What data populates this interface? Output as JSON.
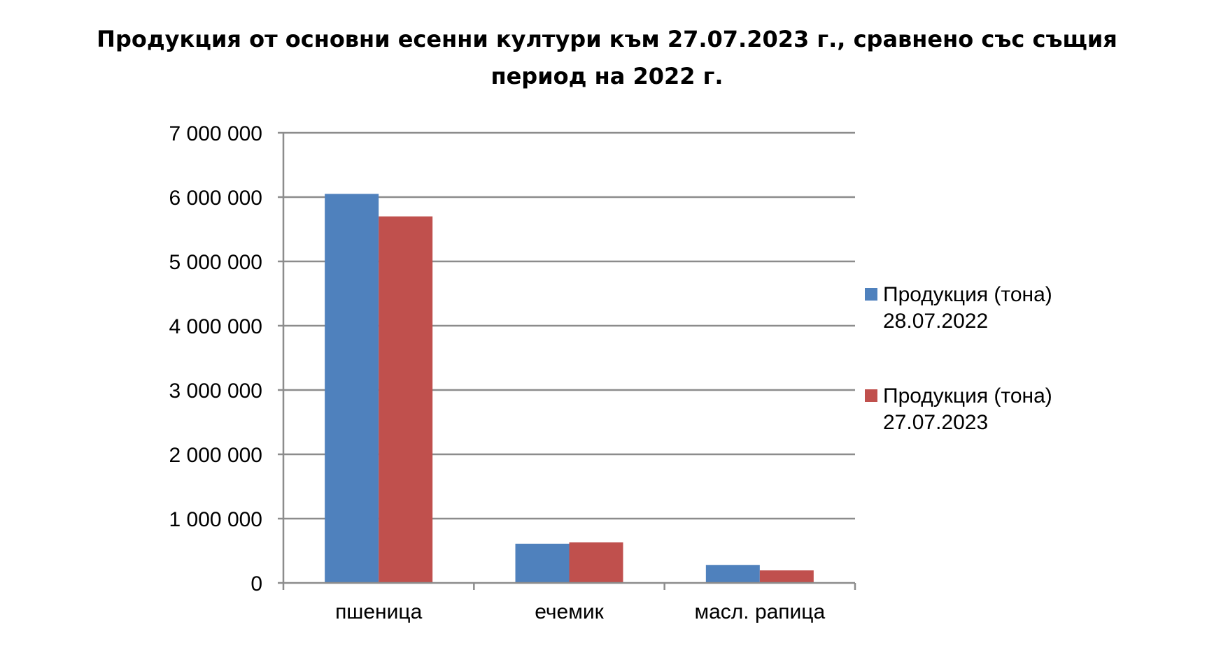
{
  "chart_data": {
    "type": "bar",
    "title_lines": [
      "Продукция от основни есенни култури към 27.07.2023 г., сравнено със същия",
      "период на 2022 г."
    ],
    "xlabel": "",
    "ylabel": "",
    "categories": [
      "пшеница",
      "ечемик",
      "масл. рапица"
    ],
    "series": [
      {
        "name_lines": [
          "Продукция (тона)",
          "28.07.2022"
        ],
        "color": "#4F81BD",
        "values": [
          6050000,
          610000,
          280000
        ]
      },
      {
        "name_lines": [
          "Продукция (тона)",
          "27.07.2023"
        ],
        "color": "#C0504D",
        "values": [
          5700000,
          630000,
          195000
        ]
      }
    ],
    "y_ticks": [
      0,
      1000000,
      2000000,
      3000000,
      4000000,
      5000000,
      6000000,
      7000000
    ],
    "y_tick_labels": [
      "0",
      "1 000 000",
      "2 000 000",
      "3 000 000",
      "4 000 000",
      "5 000 000",
      "6 000 000",
      "7 000 000"
    ],
    "ylim": [
      0,
      7000000
    ],
    "grid": true,
    "legend_position": "right"
  }
}
